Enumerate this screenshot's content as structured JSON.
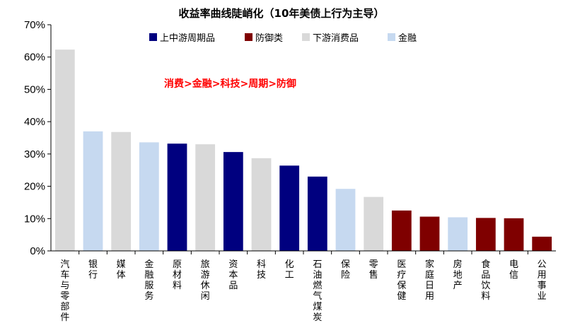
{
  "chart_data": {
    "type": "bar",
    "title": "收益率曲线陡峭化（10年美债上行为主导）",
    "annotation": "消费>金融>科技>周期>防御",
    "ylim": [
      0,
      70
    ],
    "yticks": [
      "0%",
      "10%",
      "20%",
      "30%",
      "40%",
      "50%",
      "60%",
      "70%"
    ],
    "ytick_values": [
      0,
      10,
      20,
      30,
      40,
      50,
      60,
      70
    ],
    "groups": [
      {
        "name": "上中游周期品",
        "color": "#00007f"
      },
      {
        "name": "防御类",
        "color": "#7f0000"
      },
      {
        "name": "下游消费品",
        "color": "#d9d9d9"
      },
      {
        "name": "金融",
        "color": "#c6d9f0"
      }
    ],
    "categories": [
      "汽车与零部件",
      "银行",
      "媒体",
      "金融服务",
      "原材料",
      "旅游休闲",
      "资本品",
      "科技",
      "化工",
      "石油燃气煤炭",
      "保险",
      "零售",
      "医疗保健",
      "家庭日用",
      "房地产",
      "食品饮料",
      "电信",
      "公用事业"
    ],
    "values": [
      62.3,
      37.0,
      36.8,
      33.6,
      33.2,
      33.0,
      30.6,
      28.7,
      26.4,
      23.0,
      19.2,
      16.7,
      12.5,
      10.6,
      10.4,
      10.2,
      10.1,
      4.4
    ],
    "group_index": [
      2,
      3,
      2,
      3,
      0,
      2,
      0,
      2,
      0,
      0,
      3,
      2,
      1,
      1,
      3,
      1,
      1,
      1
    ],
    "legend_position": "top",
    "grid": false
  }
}
